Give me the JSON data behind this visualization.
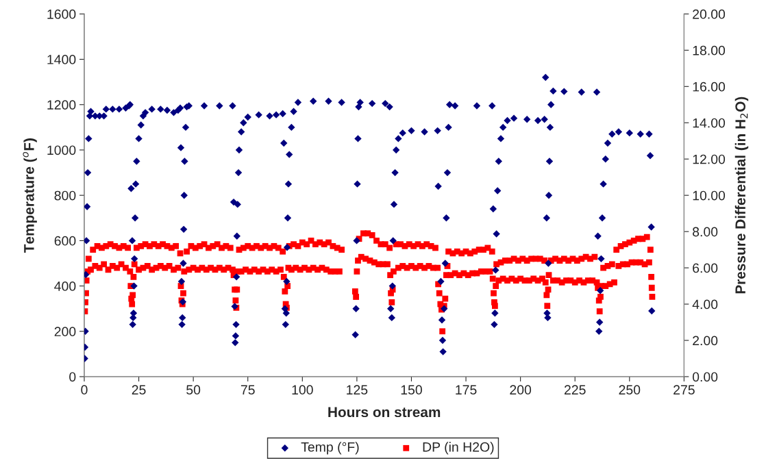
{
  "chart_data": {
    "type": "scatter",
    "xlabel": "Hours on stream",
    "ylabel": "Temperature ($^{o}$F)",
    "y2label": "Pressure Differential (in H$_{2}$O)",
    "xlim": [
      0,
      275
    ],
    "xticks": [
      0,
      25,
      50,
      75,
      100,
      125,
      150,
      175,
      200,
      225,
      250,
      275
    ],
    "ylim": [
      0,
      1600
    ],
    "yticks": [
      0,
      200,
      400,
      600,
      800,
      1000,
      1200,
      1400,
      1600
    ],
    "y2lim": [
      0,
      20
    ],
    "y2ticks": [
      {
        "value": 0,
        "label": "0.00"
      },
      {
        "value": 2,
        "label": "2.00"
      },
      {
        "value": 4,
        "label": "4.00"
      },
      {
        "value": 6,
        "label": "6.00"
      },
      {
        "value": 8,
        "label": "8.00"
      },
      {
        "value": 10,
        "label": "10.00"
      },
      {
        "value": 12,
        "label": "12.00"
      },
      {
        "value": 14,
        "label": "14.00"
      },
      {
        "value": 16,
        "label": "16.00"
      },
      {
        "value": 18,
        "label": "18.00"
      },
      {
        "value": 20,
        "label": "20.00"
      }
    ],
    "grid": false,
    "legend": "bottom",
    "series": [
      {
        "name": "Temp (°F)",
        "color": "#000080",
        "marker": "diamond",
        "x": [
          0.2,
          0.3,
          0.5,
          0.7,
          1,
          1.3,
          1.6,
          2,
          2.5,
          3,
          5,
          7,
          9,
          10,
          13,
          16,
          19,
          20.5,
          21,
          21.5,
          22,
          22.2,
          22.4,
          22.6,
          22.8,
          23,
          23.3,
          23.6,
          24,
          25,
          26,
          27,
          28,
          31,
          35,
          38,
          41,
          43,
          44,
          44.3,
          44.6,
          44.8,
          45,
          45.2,
          45.4,
          45.6,
          45.8,
          46,
          46.5,
          47,
          48,
          55,
          62,
          68,
          68.5,
          69,
          69.2,
          69.4,
          69.6,
          69.8,
          70,
          70.3,
          70.7,
          71,
          72,
          73,
          75,
          80,
          85,
          88,
          91,
          91.5,
          92,
          92.3,
          92.6,
          92.8,
          93,
          93.3,
          93.6,
          94,
          95,
          96,
          98,
          105,
          112,
          118,
          124.3,
          124.6,
          124.9,
          125.2,
          125.5,
          125.8,
          126.5,
          132,
          138,
          140,
          140.5,
          141,
          141.3,
          141.6,
          142,
          142.5,
          143,
          144,
          146,
          150,
          156,
          162,
          162.3,
          163.5,
          164,
          164.3,
          164.5,
          165,
          165.5,
          166,
          166.5,
          167,
          167.5,
          170,
          180,
          187,
          187.5,
          188,
          188.3,
          188.6,
          189,
          189.5,
          190,
          191,
          192,
          194,
          197,
          203,
          208,
          211,
          211.5,
          212,
          212.2,
          212.5,
          212.8,
          213,
          213.3,
          213.6,
          214,
          215,
          220,
          228,
          235,
          235.5,
          236,
          236.3,
          236.6,
          237,
          237.5,
          238,
          239,
          240,
          242,
          245,
          250,
          255,
          259,
          259.5,
          260,
          260.2
        ],
        "values": [
          80,
          130,
          200,
          450,
          600,
          750,
          900,
          1050,
          1150,
          1170,
          1150,
          1150,
          1150,
          1180,
          1180,
          1180,
          1185,
          1195,
          1200,
          830,
          600,
          230,
          260,
          280,
          400,
          520,
          700,
          850,
          950,
          1050,
          1110,
          1150,
          1165,
          1180,
          1180,
          1175,
          1165,
          1175,
          1185,
          1010,
          420,
          230,
          260,
          330,
          500,
          650,
          800,
          950,
          1100,
          1190,
          1195,
          1195,
          1195,
          1195,
          770,
          310,
          150,
          180,
          230,
          440,
          620,
          760,
          900,
          1000,
          1080,
          1120,
          1145,
          1155,
          1150,
          1155,
          1160,
          1030,
          300,
          230,
          280,
          420,
          570,
          700,
          850,
          980,
          1100,
          1170,
          1210,
          1215,
          1215,
          1210,
          185,
          300,
          600,
          850,
          1050,
          1190,
          1210,
          1205,
          1205,
          1190,
          300,
          260,
          400,
          600,
          760,
          900,
          1000,
          1050,
          1075,
          1085,
          1080,
          1085,
          840,
          420,
          250,
          160,
          110,
          300,
          500,
          700,
          900,
          1100,
          1200,
          1195,
          1195,
          1195,
          740,
          230,
          280,
          470,
          630,
          820,
          950,
          1050,
          1100,
          1130,
          1140,
          1135,
          1130,
          1135,
          1320,
          700,
          280,
          260,
          500,
          800,
          950,
          1100,
          1200,
          1260,
          1258,
          1255,
          1255,
          620,
          200,
          240,
          380,
          520,
          700,
          850,
          960,
          1030,
          1070,
          1080,
          1075,
          1070,
          1070,
          975,
          660,
          290
        ]
      },
      {
        "name": "DP (in H2O)",
        "color": "#ff0000",
        "marker": "square",
        "axis": "y2",
        "x": [
          0.3,
          0.5,
          0.8,
          1,
          1.5,
          2,
          3,
          4,
          5,
          6,
          7,
          8,
          9,
          10,
          11,
          12,
          13,
          14,
          15,
          16,
          17,
          18,
          19,
          20,
          21,
          21.3,
          21.6,
          21.9,
          22.2,
          22.6,
          23,
          24,
          25,
          26,
          27,
          28,
          29,
          30,
          31,
          32,
          33,
          34,
          35,
          36,
          37,
          38,
          39,
          40,
          41,
          42,
          43,
          44,
          44.3,
          44.6,
          45,
          45.4,
          45.8,
          47,
          48,
          49,
          50,
          51,
          52,
          53,
          54,
          55,
          56,
          57,
          58,
          59,
          60,
          61,
          62,
          63,
          64,
          65,
          66,
          67,
          68,
          68.5,
          69,
          69.4,
          69.7,
          70,
          70.4,
          71,
          72,
          73,
          74,
          75,
          76,
          77,
          78,
          79,
          80,
          81,
          82,
          83,
          84,
          85,
          86,
          87,
          88,
          89,
          90,
          91,
          91.5,
          92,
          92.4,
          92.8,
          93.2,
          93.6,
          94,
          95,
          96,
          97,
          98,
          99,
          100,
          101,
          102,
          103,
          104,
          105,
          106,
          107,
          108,
          109,
          110,
          111,
          112,
          113,
          114,
          115,
          116,
          117,
          118,
          124.2,
          124.6,
          125,
          125.5,
          126,
          127,
          128,
          129,
          130,
          131,
          132,
          133,
          134,
          135,
          136,
          137,
          138,
          139,
          140,
          140.3,
          140.6,
          141,
          141.4,
          141.8,
          143,
          144,
          145,
          146,
          147,
          148,
          149,
          150,
          151,
          152,
          153,
          154,
          155,
          156,
          157,
          158,
          159,
          160,
          161,
          162,
          162.3,
          162.8,
          163.3,
          163.8,
          164.2,
          165,
          165.5,
          166,
          166.5,
          167,
          168,
          169,
          170,
          171,
          172,
          173,
          174,
          175,
          176,
          177,
          178,
          179,
          180,
          181,
          182,
          183,
          184,
          185,
          186,
          187,
          187.3,
          187.7,
          188,
          188.3,
          188.7,
          189,
          190,
          191,
          192,
          193,
          194,
          195,
          196,
          197,
          198,
          199,
          200,
          201,
          202,
          203,
          204,
          205,
          206,
          207,
          208,
          209,
          210,
          211,
          211.5,
          212,
          212.3,
          212.7,
          213,
          214,
          215,
          216,
          217,
          218,
          219,
          220,
          221,
          222,
          223,
          224,
          225,
          226,
          227,
          228,
          229,
          230,
          231,
          232,
          233,
          234,
          235,
          235.5,
          236,
          236.3,
          236.7,
          237,
          238,
          239,
          240,
          241,
          242,
          243,
          244,
          245,
          246,
          247,
          248,
          249,
          250,
          251,
          252,
          253,
          254,
          255,
          256,
          257,
          258,
          259,
          259.6,
          260,
          260.2,
          260.4
        ],
        "values": [
          3.6,
          4.1,
          4.6,
          5.3,
          5.8,
          6.5,
          5.9,
          7.0,
          6.1,
          7.2,
          6.0,
          7.1,
          6.2,
          7.2,
          5.9,
          7.3,
          6.1,
          7.2,
          6.0,
          7.1,
          6.2,
          7.2,
          6.0,
          7.1,
          5.8,
          5.0,
          4.3,
          4.0,
          4.5,
          5.5,
          6.2,
          7.1,
          5.9,
          7.2,
          6.0,
          7.3,
          6.1,
          7.2,
          5.9,
          7.3,
          6.0,
          7.2,
          6.1,
          7.3,
          6.0,
          7.2,
          6.1,
          7.1,
          5.9,
          7.2,
          6.0,
          6.8,
          5.0,
          4.2,
          4.0,
          4.6,
          5.8,
          6.9,
          5.9,
          7.2,
          6.0,
          7.1,
          5.9,
          7.2,
          6.0,
          7.3,
          5.9,
          7.1,
          6.0,
          7.2,
          5.9,
          7.3,
          6.0,
          7.1,
          5.9,
          7.2,
          6.0,
          7.1,
          5.9,
          5.6,
          4.8,
          4.2,
          3.8,
          4.8,
          5.8,
          7.0,
          5.8,
          7.1,
          5.9,
          7.2,
          5.8,
          7.1,
          5.9,
          7.2,
          5.8,
          7.1,
          5.9,
          7.2,
          5.8,
          7.1,
          5.9,
          7.2,
          5.8,
          7.1,
          5.9,
          6.9,
          5.5,
          4.7,
          4.0,
          3.8,
          5.0,
          6.0,
          7.2,
          5.9,
          7.3,
          6.0,
          7.2,
          5.9,
          7.4,
          6.0,
          7.3,
          5.9,
          7.5,
          6.0,
          7.3,
          5.9,
          7.4,
          6.0,
          7.3,
          5.9,
          7.4,
          5.8,
          7.2,
          5.8,
          7.1,
          5.8,
          7.0,
          4.7,
          4.4,
          5.8,
          6.4,
          7.6,
          6.6,
          7.9,
          6.5,
          7.9,
          6.4,
          7.8,
          6.3,
          7.5,
          6.2,
          7.3,
          6.2,
          7.3,
          6.2,
          7.1,
          5.6,
          4.6,
          4.1,
          4.8,
          5.8,
          7.3,
          6.0,
          7.3,
          6.1,
          7.2,
          6.0,
          7.3,
          6.1,
          7.2,
          6.0,
          7.3,
          6.1,
          7.2,
          6.0,
          7.3,
          6.1,
          7.2,
          6.0,
          7.1,
          6.0,
          5.1,
          4.6,
          4.0,
          3.7,
          2.5,
          3.9,
          4.3,
          5.6,
          6.1,
          6.9,
          5.6,
          6.8,
          5.7,
          6.9,
          5.6,
          6.8,
          5.7,
          6.9,
          5.6,
          6.8,
          5.7,
          6.9,
          5.7,
          7.0,
          5.8,
          7.0,
          5.8,
          7.1,
          5.8,
          6.9,
          5.4,
          4.6,
          4.1,
          3.9,
          5.0,
          6.2,
          5.3,
          6.3,
          5.4,
          6.4,
          5.3,
          6.4,
          5.4,
          6.5,
          5.3,
          6.4,
          5.4,
          6.5,
          5.3,
          6.4,
          5.3,
          6.5,
          5.4,
          6.5,
          5.3,
          6.5,
          5.4,
          6.4,
          5.2,
          4.5,
          3.9,
          4.8,
          5.6,
          6.4,
          5.3,
          6.5,
          5.3,
          6.4,
          5.2,
          6.5,
          5.3,
          6.4,
          5.3,
          6.5,
          5.2,
          6.4,
          5.3,
          6.5,
          5.2,
          6.6,
          5.3,
          6.5,
          5.3,
          6.6,
          5.2,
          4.9,
          4.2,
          3.6,
          4.4,
          5.0,
          6.0,
          5.0,
          6.1,
          5.1,
          6.2,
          5.2,
          7.0,
          6.1,
          7.2,
          6.2,
          7.3,
          6.2,
          7.4,
          6.3,
          7.5,
          6.3,
          7.6,
          6.3,
          7.6,
          6.2,
          7.7,
          6.3,
          7.0,
          5.5,
          4.9,
          4.4
        ]
      }
    ]
  }
}
